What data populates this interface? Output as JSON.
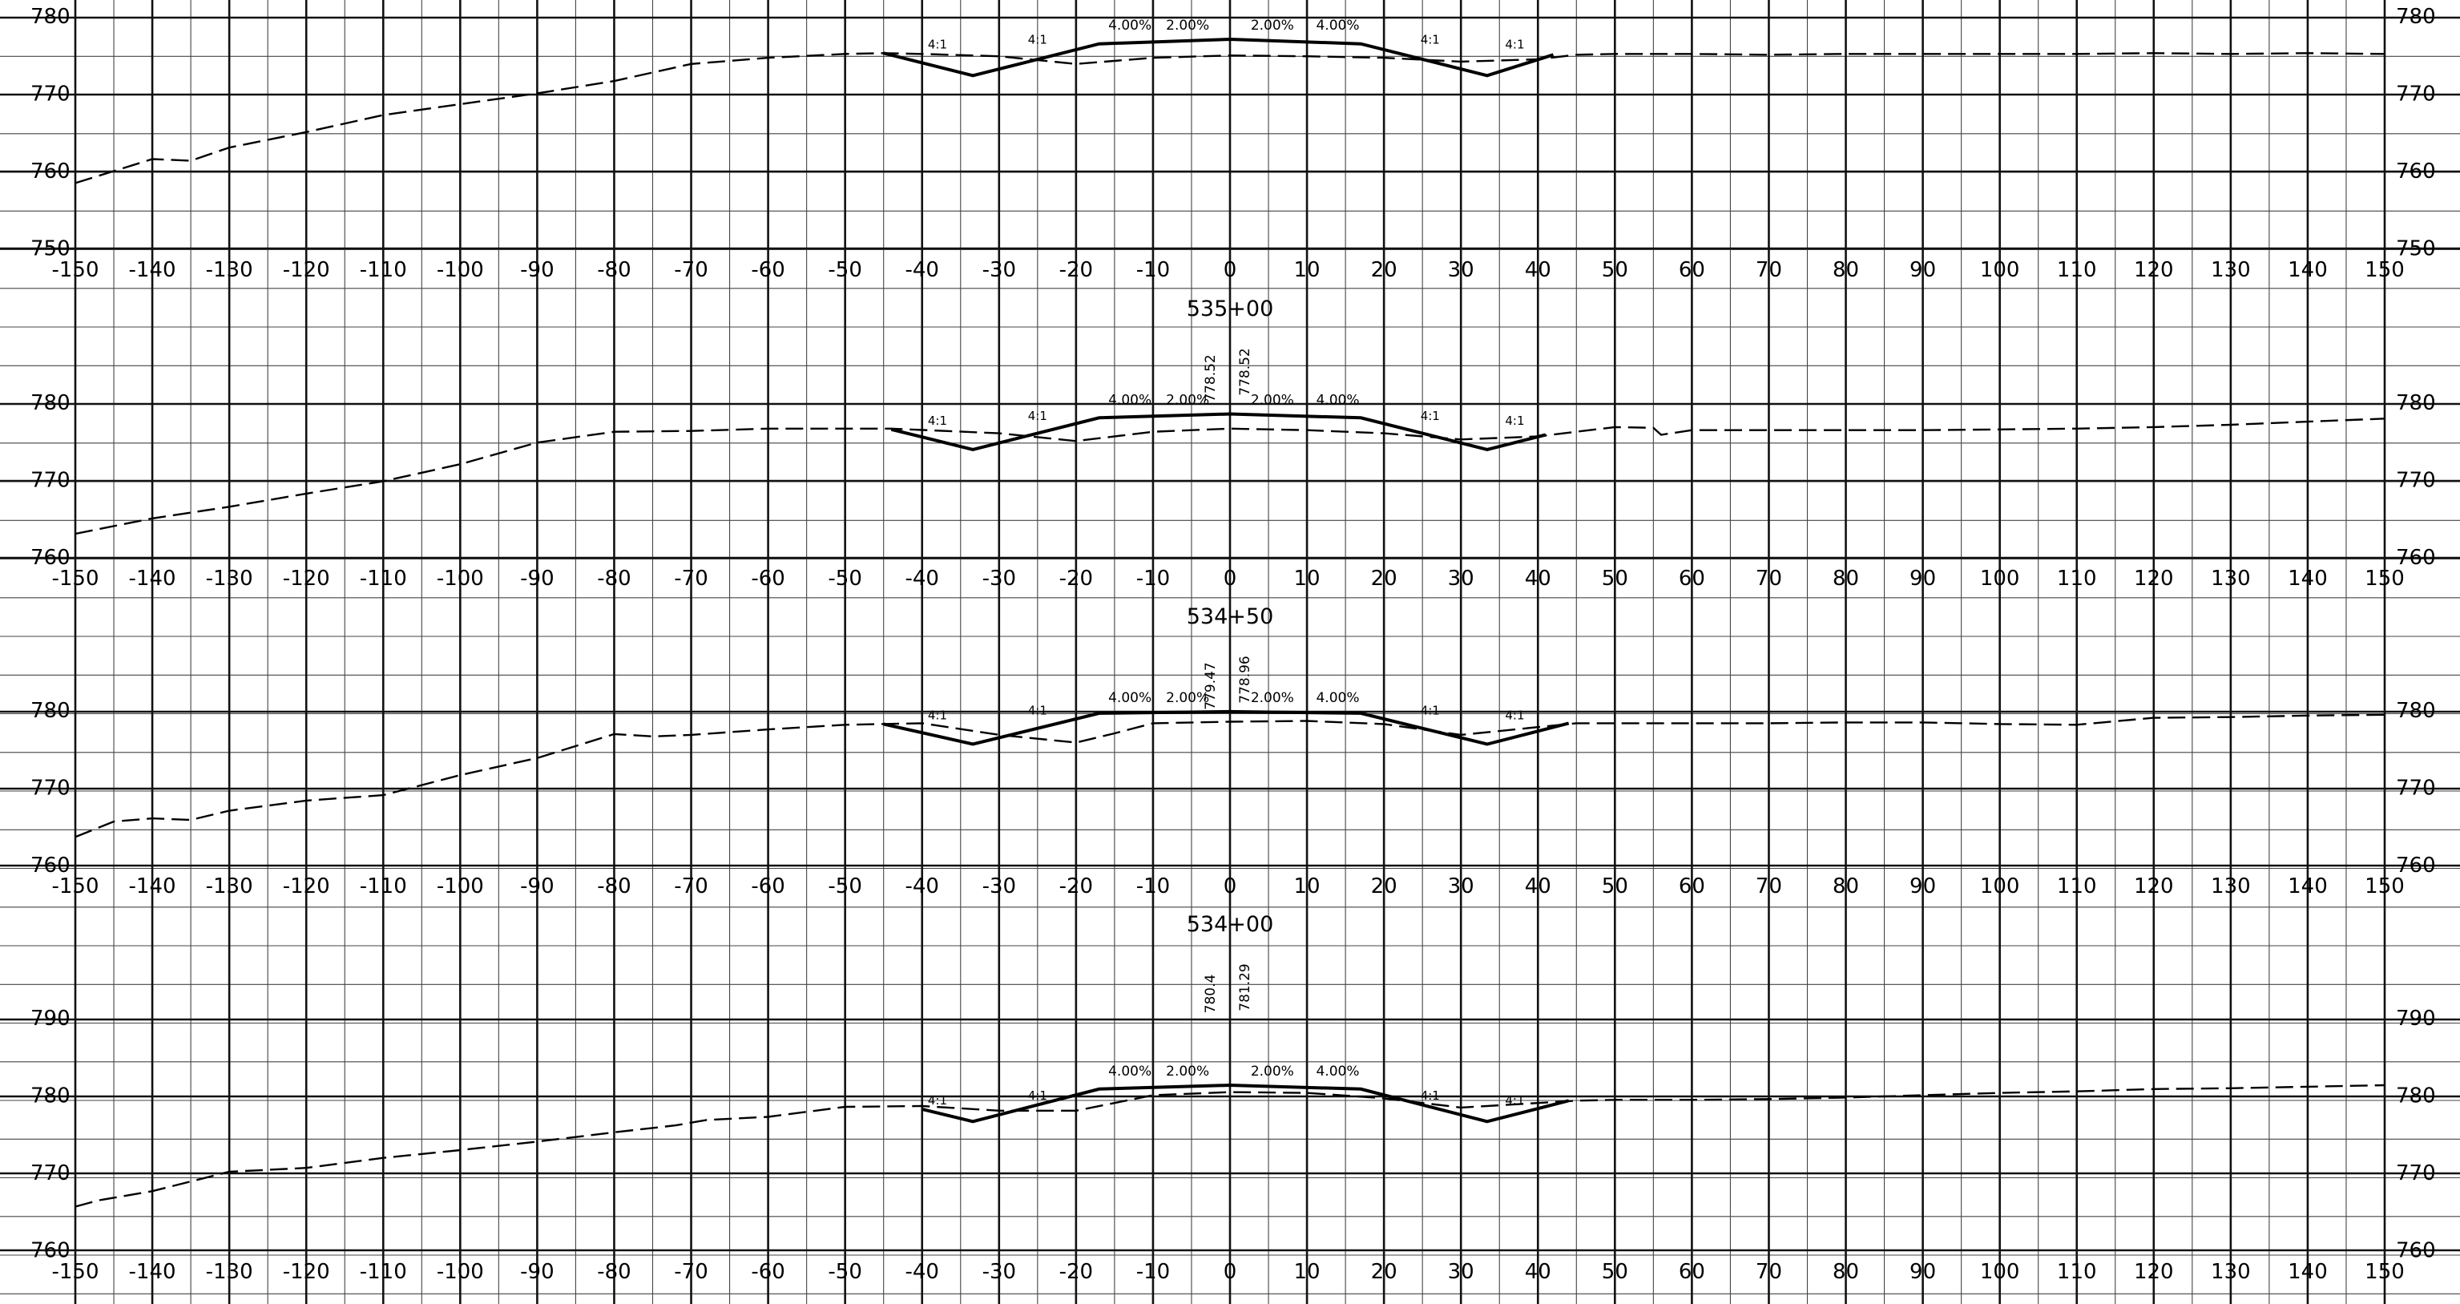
{
  "drawing": {
    "title": "",
    "offset_axis": {
      "min": -150,
      "max": 150,
      "major_step": 10,
      "minor_step": 5,
      "labels": [
        "-150",
        "-140",
        "-130",
        "-120",
        "-110",
        "-100",
        "-90",
        "-80",
        "-70",
        "-60",
        "-50",
        "-40",
        "-30",
        "-20",
        "-10",
        "0",
        "10",
        "20",
        "30",
        "40",
        "50",
        "60",
        "70",
        "80",
        "90",
        "100",
        "110",
        "120",
        "130",
        "140",
        "150"
      ]
    }
  },
  "chart_data": [
    {
      "type": "line",
      "station": "",
      "xlim": [
        -150,
        150
      ],
      "ylim": [
        750,
        782
      ],
      "elevation_labels": [
        "780",
        "770",
        "760",
        "750"
      ],
      "left_vertical_labels": [],
      "right_vertical_labels": [],
      "slope_labels": {
        "left_outer": "4.00%",
        "left_inner": "2.00%",
        "right_inner": "2.00%",
        "right_outer": "4.00%"
      },
      "ratio_labels": [
        "4:1",
        "4:1",
        "4:1",
        "4:1"
      ],
      "series": [
        {
          "kind": "existing",
          "x": [
            -150,
            -140,
            -135,
            -130,
            -120,
            -110,
            -100,
            -90,
            -80,
            -70,
            -60,
            -50,
            -45,
            -40,
            -30,
            -20,
            -10,
            0,
            10,
            20,
            30,
            40,
            45,
            50,
            60,
            70,
            80,
            90,
            100,
            110,
            120,
            130,
            140,
            150
          ],
          "y": [
            758.4,
            761.5,
            761.3,
            763,
            765,
            767.2,
            768.6,
            770,
            771.6,
            773.8,
            774.6,
            775.1,
            775.2,
            775.1,
            774.8,
            773.8,
            774.6,
            774.9,
            774.8,
            774.6,
            774.1,
            774.4,
            775,
            775.1,
            775.1,
            775,
            775.1,
            775.1,
            775.1,
            775.1,
            775.2,
            775.1,
            775.2,
            775.1
          ]
        },
        {
          "kind": "proposed",
          "x": [
            -45,
            -33.4,
            -17,
            0,
            17,
            33.4,
            42
          ],
          "y": [
            775.2,
            772.3,
            776.4,
            777,
            776.4,
            772.3,
            775
          ]
        }
      ]
    },
    {
      "type": "line",
      "station": "535+00",
      "xlim": [
        -150,
        150
      ],
      "ylim": [
        760,
        782
      ],
      "elevation_labels": [
        "780",
        "770",
        "760"
      ],
      "left_vertical_labels": [
        "778.52"
      ],
      "right_vertical_labels": [
        "778.52"
      ],
      "slope_labels": {
        "left_outer": "4.00%",
        "left_inner": "2.00%",
        "right_inner": "2.00%",
        "right_outer": "4.00%"
      },
      "ratio_labels": [
        "4:1",
        "4:1",
        "4:1",
        "4:1"
      ],
      "series": [
        {
          "kind": "existing",
          "x": [
            -150,
            -140,
            -130,
            -120,
            -110,
            -100,
            -90,
            -80,
            -70,
            -60,
            -50,
            -44,
            -30,
            -20,
            -10,
            0,
            10,
            20,
            30,
            40,
            50,
            55,
            56,
            60,
            70,
            80,
            90,
            100,
            110,
            120,
            130,
            140,
            150
          ],
          "y": [
            763,
            765,
            766.5,
            768.2,
            769.8,
            772,
            774.8,
            776.2,
            776.3,
            776.6,
            776.6,
            776.6,
            776,
            775,
            776.2,
            776.6,
            776.4,
            776,
            775.2,
            775.6,
            776.8,
            776.7,
            775.8,
            776.4,
            776.4,
            776.4,
            776.4,
            776.5,
            776.6,
            776.8,
            777.1,
            777.5,
            777.9
          ]
        },
        {
          "kind": "proposed",
          "x": [
            -44,
            -33.4,
            -17,
            0,
            17,
            33.4,
            41
          ],
          "y": [
            776.5,
            773.9,
            778,
            778.5,
            778,
            773.9,
            775.8
          ]
        }
      ]
    },
    {
      "type": "line",
      "station": "534+50",
      "xlim": [
        -150,
        150
      ],
      "ylim": [
        760,
        782
      ],
      "elevation_labels": [
        "780",
        "770",
        "760"
      ],
      "left_vertical_labels": [
        "779.47"
      ],
      "right_vertical_labels": [
        "778.96"
      ],
      "slope_labels": {
        "left_outer": "4.00%",
        "left_inner": "2.00%",
        "right_inner": "2.00%",
        "right_outer": "4.00%"
      },
      "ratio_labels": [
        "4:1",
        "4:1",
        "4:1",
        "4:1"
      ],
      "series": [
        {
          "kind": "existing",
          "x": [
            -150,
            -145,
            -140,
            -135,
            -130,
            -120,
            -110,
            -100,
            -90,
            -80,
            -75,
            -70,
            -60,
            -50,
            -40,
            -30,
            -20,
            -15,
            -10,
            0,
            10,
            20,
            30,
            40,
            45,
            50,
            60,
            70,
            80,
            90,
            100,
            110,
            120,
            130,
            140,
            150
          ],
          "y": [
            763.6,
            765.6,
            766,
            765.8,
            767,
            768.3,
            769,
            771.6,
            773.8,
            776.9,
            776.6,
            776.8,
            777.5,
            778.1,
            778.3,
            776.8,
            775.8,
            777,
            778.3,
            778.5,
            778.6,
            778.2,
            776.8,
            777.8,
            778.3,
            778.3,
            778.3,
            778.3,
            778.4,
            778.4,
            778.2,
            778.1,
            779,
            779.1,
            779.3,
            779.4
          ]
        },
        {
          "kind": "proposed",
          "x": [
            -45,
            -33.4,
            -17,
            0,
            17,
            33.4,
            44
          ],
          "y": [
            778.2,
            775.6,
            779.6,
            779.8,
            779.6,
            775.6,
            778.3
          ]
        }
      ]
    },
    {
      "type": "line",
      "station": "534+00",
      "xlim": [
        -150,
        150
      ],
      "ylim": [
        760,
        792
      ],
      "elevation_labels": [
        "790",
        "780",
        "770",
        "760"
      ],
      "left_vertical_labels": [
        "780.4"
      ],
      "right_vertical_labels": [
        "781.29"
      ],
      "slope_labels": {
        "left_outer": "4.00%",
        "left_inner": "2.00%",
        "right_inner": "2.00%",
        "right_outer": "4.00%"
      },
      "ratio_labels": [
        "4:1",
        "4:1",
        "4:1",
        "4:1"
      ],
      "series": [
        {
          "kind": "existing",
          "x": [
            -150,
            -147,
            -140,
            -130,
            -120,
            -110,
            -100,
            -90,
            -80,
            -72,
            -68,
            -60,
            -50,
            -40,
            -30,
            -20,
            -10,
            0,
            10,
            20,
            30,
            40,
            45,
            50,
            60,
            70,
            80,
            90,
            100,
            110,
            120,
            130,
            140,
            150
          ],
          "y": [
            765.6,
            766.4,
            767.6,
            770.1,
            770.6,
            771.9,
            772.9,
            774,
            775.2,
            776.1,
            776.8,
            777.2,
            778.5,
            778.6,
            778,
            778,
            780,
            780.4,
            780.3,
            779.6,
            778.4,
            779,
            779.3,
            779.4,
            779.4,
            779.5,
            779.7,
            780,
            780.3,
            780.5,
            780.8,
            780.9,
            781.1,
            781.3
          ]
        },
        {
          "kind": "proposed",
          "x": [
            -40,
            -33.4,
            -17,
            0,
            17,
            33.4,
            44
          ],
          "y": [
            778.2,
            776.6,
            780.8,
            781.3,
            780.8,
            776.6,
            779.3
          ]
        }
      ]
    }
  ]
}
